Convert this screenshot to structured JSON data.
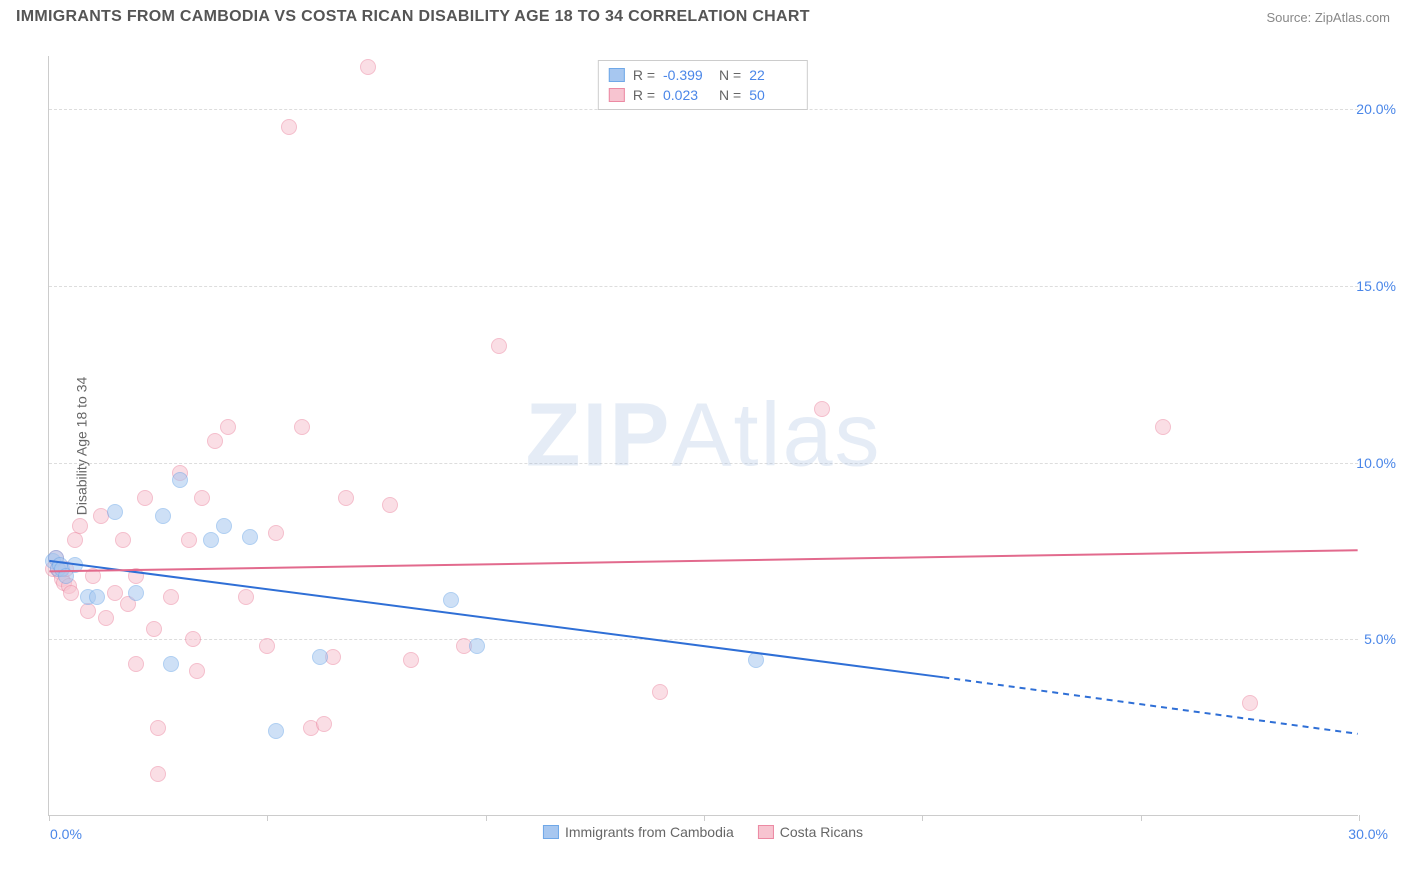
{
  "title": "IMMIGRANTS FROM CAMBODIA VS COSTA RICAN DISABILITY AGE 18 TO 34 CORRELATION CHART",
  "source_label": "Source: ZipAtlas.com",
  "y_axis_label": "Disability Age 18 to 34",
  "watermark_bold": "ZIP",
  "watermark_light": "Atlas",
  "chart": {
    "type": "scatter-correlation",
    "background_color": "#ffffff",
    "grid_color": "#dddddd",
    "axis_color": "#cccccc",
    "tick_label_color": "#4a86e8",
    "xlim": [
      0,
      30
    ],
    "ylim": [
      0,
      21.5
    ],
    "y_ticks": [
      5,
      10,
      15,
      20
    ],
    "y_tick_labels": [
      "5.0%",
      "10.0%",
      "15.0%",
      "20.0%"
    ],
    "x_tick_positions": [
      0,
      5,
      10,
      15,
      20,
      25,
      30
    ],
    "x_min_label": "0.0%",
    "x_max_label": "30.0%",
    "marker_radius": 8,
    "marker_opacity": 0.55,
    "line_width": 2,
    "series": [
      {
        "id": "cambodia",
        "label": "Immigrants from Cambodia",
        "R": "-0.399",
        "N": "22",
        "fill_color": "#a7c7f0",
        "stroke_color": "#6fa8e8",
        "line_color": "#2f6fd6",
        "trend_start": {
          "x": 0,
          "y": 7.2
        },
        "trend_solid_end": {
          "x": 20.5,
          "y": 3.9
        },
        "trend_dash_end": {
          "x": 30,
          "y": 2.3
        },
        "points": [
          {
            "x": 0.1,
            "y": 7.2
          },
          {
            "x": 0.15,
            "y": 7.3
          },
          {
            "x": 0.2,
            "y": 7.0
          },
          {
            "x": 0.25,
            "y": 7.1
          },
          {
            "x": 0.3,
            "y": 7.0
          },
          {
            "x": 0.4,
            "y": 6.8
          },
          {
            "x": 0.6,
            "y": 7.1
          },
          {
            "x": 0.9,
            "y": 6.2
          },
          {
            "x": 1.1,
            "y": 6.2
          },
          {
            "x": 1.5,
            "y": 8.6
          },
          {
            "x": 2.0,
            "y": 6.3
          },
          {
            "x": 2.6,
            "y": 8.5
          },
          {
            "x": 3.0,
            "y": 9.5
          },
          {
            "x": 3.7,
            "y": 7.8
          },
          {
            "x": 4.0,
            "y": 8.2
          },
          {
            "x": 4.6,
            "y": 7.9
          },
          {
            "x": 5.2,
            "y": 2.4
          },
          {
            "x": 6.2,
            "y": 4.5
          },
          {
            "x": 2.8,
            "y": 4.3
          },
          {
            "x": 9.2,
            "y": 6.1
          },
          {
            "x": 9.8,
            "y": 4.8
          },
          {
            "x": 16.2,
            "y": 4.4
          }
        ]
      },
      {
        "id": "costarican",
        "label": "Costa Ricans",
        "R": "0.023",
        "N": "50",
        "fill_color": "#f7c4d0",
        "stroke_color": "#ec8aa3",
        "line_color": "#e26a8d",
        "trend_start": {
          "x": 0,
          "y": 6.9
        },
        "trend_solid_end": {
          "x": 30,
          "y": 7.5
        },
        "trend_dash_end": null,
        "points": [
          {
            "x": 0.1,
            "y": 7.0
          },
          {
            "x": 0.15,
            "y": 7.3
          },
          {
            "x": 0.2,
            "y": 7.0
          },
          {
            "x": 0.25,
            "y": 6.9
          },
          {
            "x": 0.3,
            "y": 6.7
          },
          {
            "x": 0.35,
            "y": 6.6
          },
          {
            "x": 0.4,
            "y": 7.0
          },
          {
            "x": 0.45,
            "y": 6.5
          },
          {
            "x": 0.5,
            "y": 6.3
          },
          {
            "x": 0.6,
            "y": 7.8
          },
          {
            "x": 0.7,
            "y": 8.2
          },
          {
            "x": 0.9,
            "y": 5.8
          },
          {
            "x": 1.0,
            "y": 6.8
          },
          {
            "x": 1.2,
            "y": 8.5
          },
          {
            "x": 1.3,
            "y": 5.6
          },
          {
            "x": 1.5,
            "y": 6.3
          },
          {
            "x": 1.7,
            "y": 7.8
          },
          {
            "x": 2.0,
            "y": 4.3
          },
          {
            "x": 2.0,
            "y": 6.8
          },
          {
            "x": 2.2,
            "y": 9.0
          },
          {
            "x": 2.4,
            "y": 5.3
          },
          {
            "x": 2.5,
            "y": 1.2
          },
          {
            "x": 2.5,
            "y": 2.5
          },
          {
            "x": 2.8,
            "y": 6.2
          },
          {
            "x": 3.0,
            "y": 9.7
          },
          {
            "x": 3.2,
            "y": 7.8
          },
          {
            "x": 3.3,
            "y": 5.0
          },
          {
            "x": 3.5,
            "y": 9.0
          },
          {
            "x": 3.8,
            "y": 10.6
          },
          {
            "x": 4.1,
            "y": 11.0
          },
          {
            "x": 4.5,
            "y": 6.2
          },
          {
            "x": 5.0,
            "y": 4.8
          },
          {
            "x": 5.2,
            "y": 8.0
          },
          {
            "x": 5.5,
            "y": 19.5
          },
          {
            "x": 5.8,
            "y": 11.0
          },
          {
            "x": 6.0,
            "y": 2.5
          },
          {
            "x": 6.3,
            "y": 2.6
          },
          {
            "x": 6.5,
            "y": 4.5
          },
          {
            "x": 6.8,
            "y": 9.0
          },
          {
            "x": 7.3,
            "y": 21.2
          },
          {
            "x": 7.8,
            "y": 8.8
          },
          {
            "x": 8.3,
            "y": 4.4
          },
          {
            "x": 9.5,
            "y": 4.8
          },
          {
            "x": 10.3,
            "y": 13.3
          },
          {
            "x": 14.0,
            "y": 3.5
          },
          {
            "x": 17.7,
            "y": 11.5
          },
          {
            "x": 25.5,
            "y": 11.0
          },
          {
            "x": 27.5,
            "y": 3.2
          },
          {
            "x": 3.4,
            "y": 4.1
          },
          {
            "x": 1.8,
            "y": 6.0
          }
        ]
      }
    ]
  },
  "top_legend": {
    "r_prefix": "R =",
    "n_prefix": "N ="
  }
}
